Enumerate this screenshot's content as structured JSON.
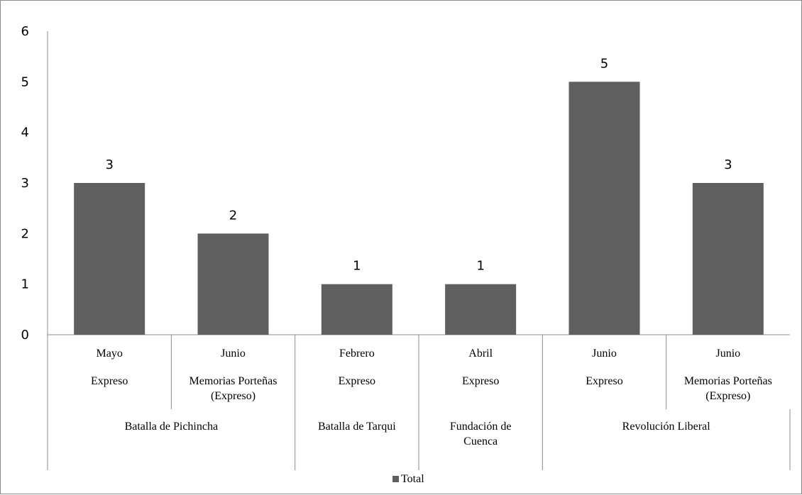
{
  "chart_data": {
    "type": "bar",
    "ylim": [
      0,
      6
    ],
    "yticks": [
      "0",
      "1",
      "2",
      "3",
      "4",
      "5",
      "6"
    ],
    "grid": false,
    "legend_position": "bottom",
    "bar_color": "#5f5f5f",
    "series": [
      {
        "name": "Total",
        "values": [
          3,
          2,
          1,
          1,
          5,
          3
        ]
      }
    ],
    "categories": [
      {
        "month": "Mayo",
        "source": [
          "Expreso"
        ]
      },
      {
        "month": "Junio",
        "source": [
          "Memorias Porteñas",
          "(Expreso)"
        ]
      },
      {
        "month": "Febrero",
        "source": [
          "Expreso"
        ]
      },
      {
        "month": "Abril",
        "source": [
          "Expreso"
        ]
      },
      {
        "month": "Junio",
        "source": [
          "Expreso"
        ]
      },
      {
        "month": "Junio",
        "source": [
          "Memorias Porteñas",
          "(Expreso)"
        ]
      }
    ],
    "groups": [
      {
        "label": [
          "Batalla de Pichincha"
        ],
        "span": 2
      },
      {
        "label": [
          "Batalla de Tarqui"
        ],
        "span": 1
      },
      {
        "label": [
          "Fundación de",
          "Cuenca"
        ],
        "span": 1
      },
      {
        "label": [
          "Revolución Liberal"
        ],
        "span": 2
      }
    ],
    "data_labels": [
      "3",
      "2",
      "1",
      "1",
      "5",
      "3"
    ]
  }
}
